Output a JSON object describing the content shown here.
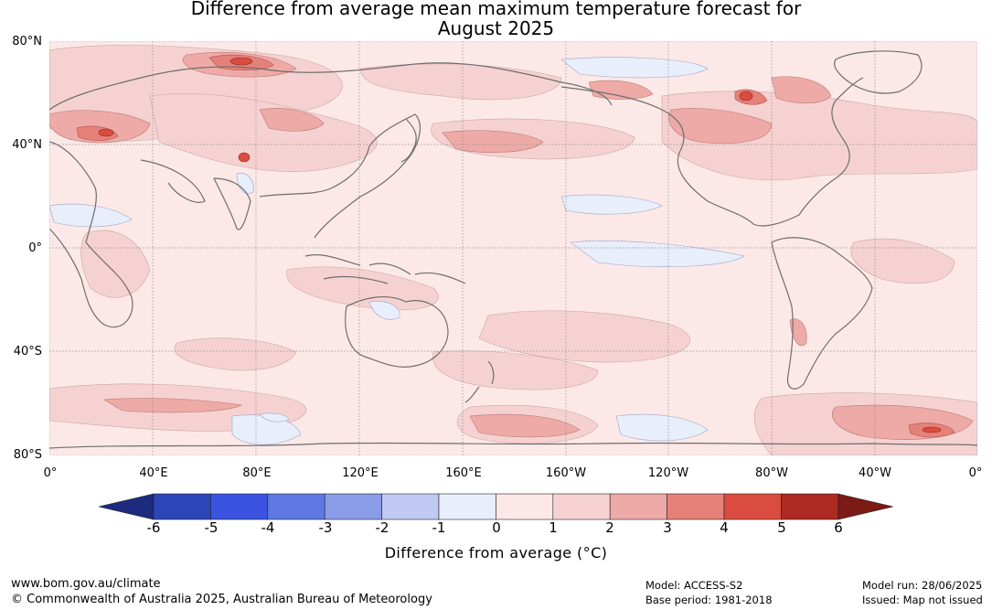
{
  "title": {
    "line1": "Difference from average mean maximum temperature forecast for",
    "line2": "August 2025"
  },
  "map": {
    "lat_labels": [
      "80°N",
      "40°N",
      "0°",
      "40°S",
      "80°S"
    ],
    "lon_labels": [
      "0°",
      "40°E",
      "80°E",
      "120°E",
      "160°E",
      "160°W",
      "120°W",
      "80°W",
      "40°W",
      "0°"
    ],
    "background_color": "#fce9e7",
    "coastline_color": "#6e6e6e"
  },
  "colorbar": {
    "ticks": [
      "-6",
      "-5",
      "-4",
      "-3",
      "-2",
      "-1",
      "0",
      "1",
      "2",
      "3",
      "4",
      "5",
      "6"
    ],
    "colors": [
      "#1c2a80",
      "#2c45b8",
      "#3a53e0",
      "#5f78e4",
      "#8a9ce8",
      "#bfc9f1",
      "#e9eefb",
      "#fce9e7",
      "#f5d2d1",
      "#eeaaa6",
      "#e6817a",
      "#db4c40",
      "#ad2a22",
      "#7c1a15"
    ],
    "label": "Difference from average (°C)"
  },
  "footer": {
    "website": "www.bom.gov.au/climate",
    "copyright": "© Commonwealth of Australia 2025, Australian Bureau of Meteorology",
    "model": "Model: ACCESS-S2",
    "base_period": "Base period: 1981-2018",
    "model_run": "Model run: 28/06/2025",
    "issued": "Issued: Map not issued"
  }
}
